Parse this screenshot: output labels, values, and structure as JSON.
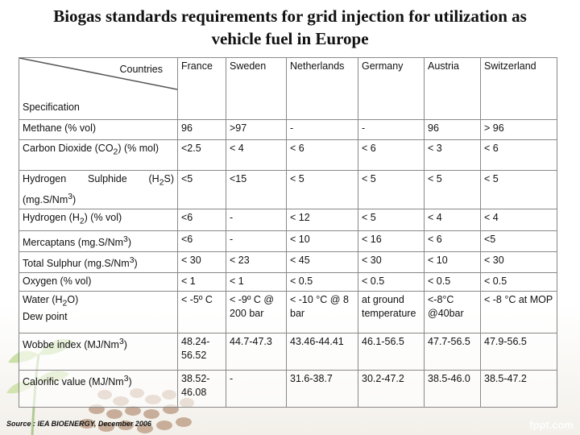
{
  "title_line1": "Biogas standards requirements for grid injection for utilization as",
  "title_line2": "vehicle fuel in Europe",
  "header": {
    "countries_label": "Countries",
    "specification_label": "Specification",
    "countries": [
      "France",
      "Sweden",
      "Netherlands",
      "Germany",
      "Austria",
      "Switzerland"
    ]
  },
  "rows": [
    {
      "spec": "Methane (% vol)",
      "values": [
        "96",
        ">97",
        "-",
        "-",
        "96",
        "> 96"
      ]
    },
    {
      "spec": "Carbon Dioxide (CO2) (% mol)",
      "values": [
        "<2.5",
        "< 4",
        "< 6",
        "< 6",
        "< 3",
        "< 6"
      ]
    },
    {
      "spec": "Hydrogen Sulphide (H2S) (mg.S/Nm3)",
      "values": [
        "<5",
        "<15",
        "< 5",
        "< 5",
        "< 5",
        "< 5"
      ]
    },
    {
      "spec": "Hydrogen (H2) (% vol)",
      "values": [
        "<6",
        "-",
        "< 12",
        "< 5",
        "< 4",
        "< 4"
      ]
    },
    {
      "spec": "Mercaptans (mg.S/Nm3)",
      "values": [
        "<6",
        "-",
        "< 10",
        "< 16",
        "< 6",
        "<5"
      ]
    },
    {
      "spec": "Total Sulphur (mg.S/Nm3)",
      "values": [
        "< 30",
        "< 23",
        "< 45",
        "< 30",
        "< 10",
        "< 30"
      ]
    },
    {
      "spec": "Oxygen (% vol)",
      "values": [
        "< 1",
        "< 1",
        "< 0.5",
        "< 0.5",
        "< 0.5",
        "< 0.5"
      ]
    },
    {
      "spec": "Water (H2O) Dew point",
      "values": [
        "< -5º C",
        "< -9º C @ 200 bar",
        "< -10 °C @ 8 bar",
        "at ground temperature",
        "<-8°C @40bar",
        "< -8 °C at MOP"
      ]
    },
    {
      "spec": "Wobbe index (MJ/Nm3)",
      "values": [
        "48.24-56.52",
        "44.7-47.3",
        "43.46-44.41",
        "46.1-56.5",
        "47.7-56.5",
        "47.9-56.5"
      ]
    },
    {
      "spec": "Calorific value (MJ/Nm3)",
      "values": [
        "38.52-46.08",
        "-",
        "31.6-38.7",
        "30.2-47.2",
        "38.5-46.0",
        "38.5-47.2"
      ]
    }
  ],
  "source": "Source : IEA BIOENERGY, December 2006",
  "watermark": "fppt.com"
}
